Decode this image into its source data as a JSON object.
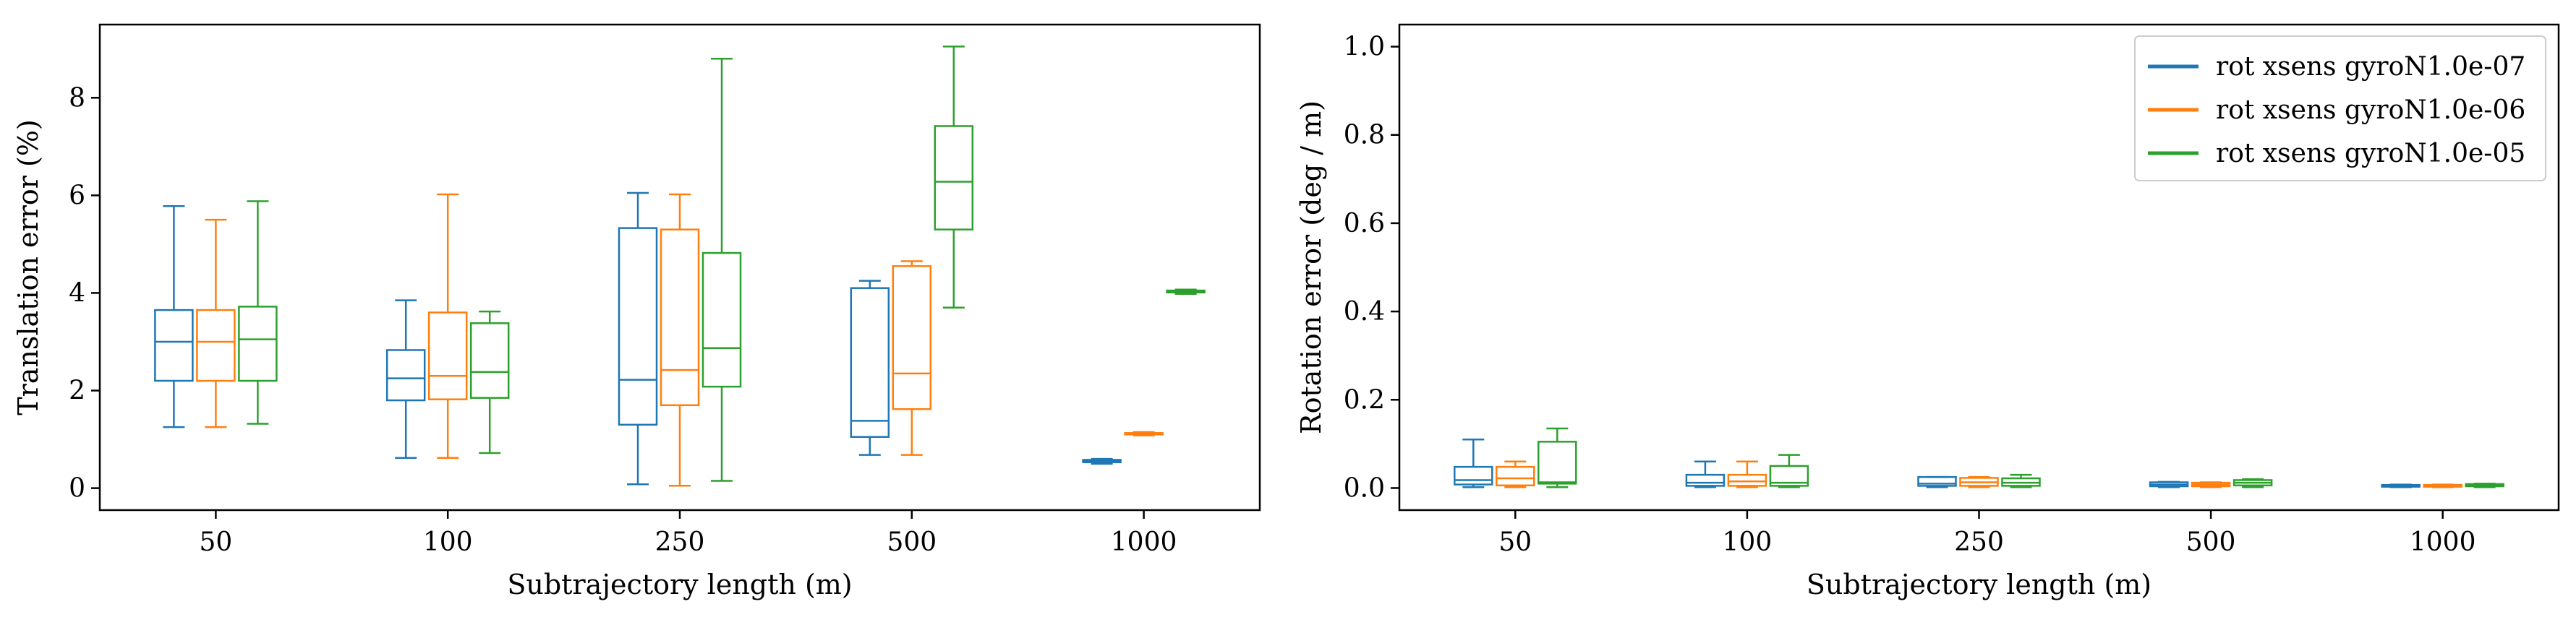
{
  "colors": {
    "series": [
      "#1f77b4",
      "#ff7f0e",
      "#2ca02c"
    ]
  },
  "chart_data": [
    {
      "type": "box",
      "title": "",
      "xlabel": "Subtrajectory length (m)",
      "ylabel": "Translation error (%)",
      "categories": [
        "50",
        "100",
        "250",
        "500",
        "1000"
      ],
      "ylim": [
        -0.45,
        9.5
      ],
      "yticks": [
        0,
        2,
        4,
        6,
        8
      ],
      "grid": false,
      "series": [
        {
          "values": [
            {
              "whislo": 1.25,
              "q1": 2.2,
              "med": 3.0,
              "q3": 3.65,
              "whishi": 5.78
            },
            {
              "whislo": 0.62,
              "q1": 1.8,
              "med": 2.25,
              "q3": 2.83,
              "whishi": 3.85
            },
            {
              "whislo": 0.08,
              "q1": 1.3,
              "med": 2.22,
              "q3": 5.33,
              "whishi": 6.05
            },
            {
              "whislo": 0.68,
              "q1": 1.05,
              "med": 1.38,
              "q3": 4.1,
              "whishi": 4.25
            },
            {
              "whislo": 0.5,
              "q1": 0.53,
              "med": 0.55,
              "q3": 0.58,
              "whishi": 0.6
            }
          ]
        },
        {
          "values": [
            {
              "whislo": 1.25,
              "q1": 2.2,
              "med": 3.0,
              "q3": 3.65,
              "whishi": 5.5
            },
            {
              "whislo": 0.62,
              "q1": 1.82,
              "med": 2.3,
              "q3": 3.6,
              "whishi": 6.02
            },
            {
              "whislo": 0.05,
              "q1": 1.7,
              "med": 2.42,
              "q3": 5.3,
              "whishi": 6.02
            },
            {
              "whislo": 0.68,
              "q1": 1.62,
              "med": 2.35,
              "q3": 4.55,
              "whishi": 4.65
            },
            {
              "whislo": 1.08,
              "q1": 1.1,
              "med": 1.11,
              "q3": 1.13,
              "whishi": 1.15
            }
          ]
        },
        {
          "values": [
            {
              "whislo": 1.32,
              "q1": 2.2,
              "med": 3.05,
              "q3": 3.72,
              "whishi": 5.88
            },
            {
              "whislo": 0.72,
              "q1": 1.85,
              "med": 2.38,
              "q3": 3.38,
              "whishi": 3.62
            },
            {
              "whislo": 0.15,
              "q1": 2.08,
              "med": 2.87,
              "q3": 4.82,
              "whishi": 8.8
            },
            {
              "whislo": 3.7,
              "q1": 5.3,
              "med": 6.28,
              "q3": 7.42,
              "whishi": 9.05
            },
            {
              "whislo": 3.98,
              "q1": 4.01,
              "med": 4.03,
              "q3": 4.05,
              "whishi": 4.07
            }
          ]
        }
      ]
    },
    {
      "type": "box",
      "title": "",
      "xlabel": "Subtrajectory length (m)",
      "ylabel": "Rotation error (deg / m)",
      "categories": [
        "50",
        "100",
        "250",
        "500",
        "1000"
      ],
      "ylim": [
        -0.05,
        1.05
      ],
      "yticks": [
        0.0,
        0.2,
        0.4,
        0.6,
        0.8,
        1.0
      ],
      "grid": false,
      "legend": "top-right",
      "series": [
        {
          "name": "rot xsens gyroN1.0e-07",
          "values": [
            {
              "whislo": 0.002,
              "q1": 0.008,
              "med": 0.018,
              "q3": 0.048,
              "whishi": 0.11
            },
            {
              "whislo": 0.002,
              "q1": 0.005,
              "med": 0.012,
              "q3": 0.03,
              "whishi": 0.06
            },
            {
              "whislo": 0.002,
              "q1": 0.005,
              "med": 0.01,
              "q3": 0.025,
              "whishi": 0.025
            },
            {
              "whislo": 0.002,
              "q1": 0.004,
              "med": 0.008,
              "q3": 0.013,
              "whishi": 0.014
            },
            {
              "whislo": 0.002,
              "q1": 0.003,
              "med": 0.005,
              "q3": 0.007,
              "whishi": 0.008
            }
          ]
        },
        {
          "name": "rot xsens gyroN1.0e-06",
          "values": [
            {
              "whislo": 0.002,
              "q1": 0.006,
              "med": 0.022,
              "q3": 0.048,
              "whishi": 0.06
            },
            {
              "whislo": 0.002,
              "q1": 0.005,
              "med": 0.015,
              "q3": 0.03,
              "whishi": 0.06
            },
            {
              "whislo": 0.002,
              "q1": 0.005,
              "med": 0.013,
              "q3": 0.023,
              "whishi": 0.025
            },
            {
              "whislo": 0.002,
              "q1": 0.004,
              "med": 0.008,
              "q3": 0.012,
              "whishi": 0.013
            },
            {
              "whislo": 0.002,
              "q1": 0.003,
              "med": 0.005,
              "q3": 0.007,
              "whishi": 0.008
            }
          ]
        },
        {
          "name": "rot xsens gyroN1.0e-05",
          "values": [
            {
              "whislo": 0.002,
              "q1": 0.01,
              "med": 0.013,
              "q3": 0.105,
              "whishi": 0.135
            },
            {
              "whislo": 0.002,
              "q1": 0.005,
              "med": 0.012,
              "q3": 0.05,
              "whishi": 0.075
            },
            {
              "whislo": 0.002,
              "q1": 0.005,
              "med": 0.012,
              "q3": 0.022,
              "whishi": 0.03
            },
            {
              "whislo": 0.002,
              "q1": 0.006,
              "med": 0.012,
              "q3": 0.018,
              "whishi": 0.02
            },
            {
              "whislo": 0.002,
              "q1": 0.004,
              "med": 0.007,
              "q3": 0.009,
              "whishi": 0.01
            }
          ]
        }
      ]
    }
  ]
}
